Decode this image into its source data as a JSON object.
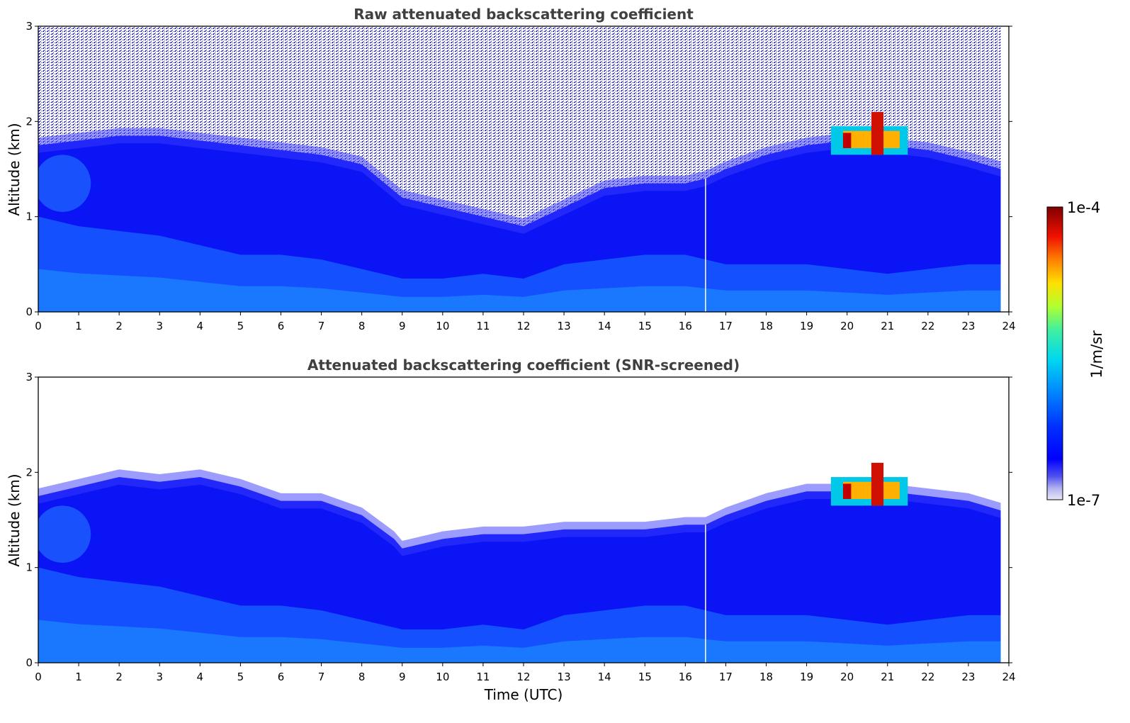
{
  "chart_data": [
    {
      "type": "heatmap",
      "title": "Raw attenuated backscattering coefficient",
      "xlabel": "",
      "ylabel": "Altitude (km)",
      "xlim": [
        0,
        24
      ],
      "ylim": [
        0,
        3
      ],
      "xticks": [
        "0",
        "1",
        "2",
        "3",
        "4",
        "5",
        "6",
        "7",
        "8",
        "9",
        "10",
        "11",
        "12",
        "13",
        "14",
        "15",
        "16",
        "17",
        "18",
        "19",
        "20",
        "21",
        "22",
        "23",
        "24"
      ],
      "yticks": [
        "0",
        "1",
        "2",
        "3"
      ],
      "data_end_time": 23.8,
      "noisy_top": true,
      "layer_boundary_km": {
        "x": [
          0,
          1,
          2,
          3,
          4,
          5,
          6,
          7,
          8,
          9,
          10,
          11,
          12,
          13,
          14,
          15,
          16,
          16.5,
          17,
          18,
          19,
          20,
          21,
          22,
          23,
          23.8
        ],
        "y": [
          1.75,
          1.8,
          1.85,
          1.85,
          1.8,
          1.75,
          1.7,
          1.65,
          1.55,
          1.2,
          1.1,
          1.0,
          0.9,
          1.1,
          1.3,
          1.35,
          1.35,
          1.4,
          1.5,
          1.65,
          1.75,
          1.8,
          1.75,
          1.7,
          1.6,
          1.5
        ]
      },
      "missing_column_time": 16.5,
      "cloud": {
        "x_range": [
          19.6,
          21.5
        ],
        "y_range": [
          1.65,
          2.1
        ]
      }
    },
    {
      "type": "heatmap",
      "title": "Attenuated backscattering coefficient (SNR-screened)",
      "xlabel": "Time (UTC)",
      "ylabel": "Altitude (km)",
      "xlim": [
        0,
        24
      ],
      "ylim": [
        0,
        3
      ],
      "xticks": [
        "0",
        "1",
        "2",
        "3",
        "4",
        "5",
        "6",
        "7",
        "8",
        "9",
        "10",
        "11",
        "12",
        "13",
        "14",
        "15",
        "16",
        "17",
        "18",
        "19",
        "20",
        "21",
        "22",
        "23",
        "24"
      ],
      "yticks": [
        "0",
        "1",
        "2",
        "3"
      ],
      "data_end_time": 23.8,
      "noisy_top": false,
      "layer_boundary_km": {
        "x": [
          0,
          1,
          2,
          3,
          4,
          5,
          6,
          7,
          8,
          8.8,
          9,
          10,
          11,
          12,
          13,
          14,
          15,
          16,
          16.5,
          17,
          18,
          19,
          20,
          21,
          22,
          23,
          23.8
        ],
        "y": [
          1.75,
          1.85,
          1.95,
          1.9,
          1.95,
          1.85,
          1.7,
          1.7,
          1.55,
          1.3,
          1.2,
          1.3,
          1.35,
          1.35,
          1.4,
          1.4,
          1.4,
          1.45,
          1.45,
          1.55,
          1.7,
          1.8,
          1.8,
          1.8,
          1.75,
          1.7,
          1.6
        ]
      },
      "missing_column_time": 16.5,
      "cloud": {
        "x_range": [
          19.6,
          21.5
        ],
        "y_range": [
          1.65,
          2.1
        ]
      }
    }
  ],
  "colorbar": {
    "max_label": "1e-4",
    "min_label": "1e-7",
    "unit_label": "1/m/sr",
    "colormap": [
      "#e8e8f8",
      "#b0b0f0",
      "#7070f0",
      "#2020f0",
      "#0000ff",
      "#0040ff",
      "#0090ff",
      "#00d0ff",
      "#20f0c0",
      "#80ff60",
      "#e0ff20",
      "#ffd000",
      "#ff7000",
      "#f01000",
      "#b00000",
      "#800000"
    ]
  }
}
